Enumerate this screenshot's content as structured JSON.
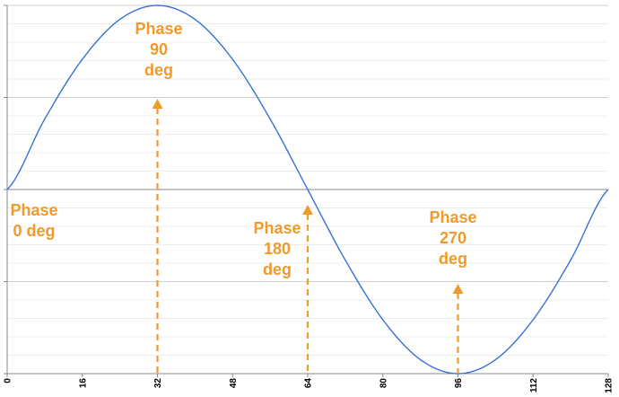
{
  "chart_data": {
    "type": "line",
    "title": "",
    "xlabel": "",
    "ylabel": "",
    "xlim": [
      0,
      128
    ],
    "ylim": [
      -1,
      1
    ],
    "x_ticks": [
      "0",
      "16",
      "32",
      "48",
      "64",
      "80",
      "96",
      "112",
      "128"
    ],
    "grid": true,
    "series": [
      {
        "x": [
          0,
          8,
          16,
          24,
          32,
          40,
          48,
          56,
          64,
          72,
          80,
          88,
          96,
          104,
          112,
          120,
          128
        ],
        "y": [
          0,
          0.383,
          0.707,
          0.924,
          1,
          0.924,
          0.707,
          0.383,
          0,
          -0.383,
          -0.707,
          -0.924,
          -1,
          -0.924,
          -0.707,
          -0.383,
          0
        ],
        "color": "#3a6fd8"
      }
    ],
    "annotations": [
      {
        "lines": [
          "Phase",
          "0 deg"
        ],
        "x": 0,
        "color": "#ef9a2a",
        "arrow": false
      },
      {
        "lines": [
          "Phase",
          "90",
          "deg"
        ],
        "x": 32,
        "color": "#ef9a2a",
        "arrow": true
      },
      {
        "lines": [
          "Phase",
          "180",
          "deg"
        ],
        "x": 64,
        "color": "#ef9a2a",
        "arrow": true
      },
      {
        "lines": [
          "Phase",
          "270",
          "deg"
        ],
        "x": 96,
        "color": "#ef9a2a",
        "arrow": true
      }
    ]
  }
}
